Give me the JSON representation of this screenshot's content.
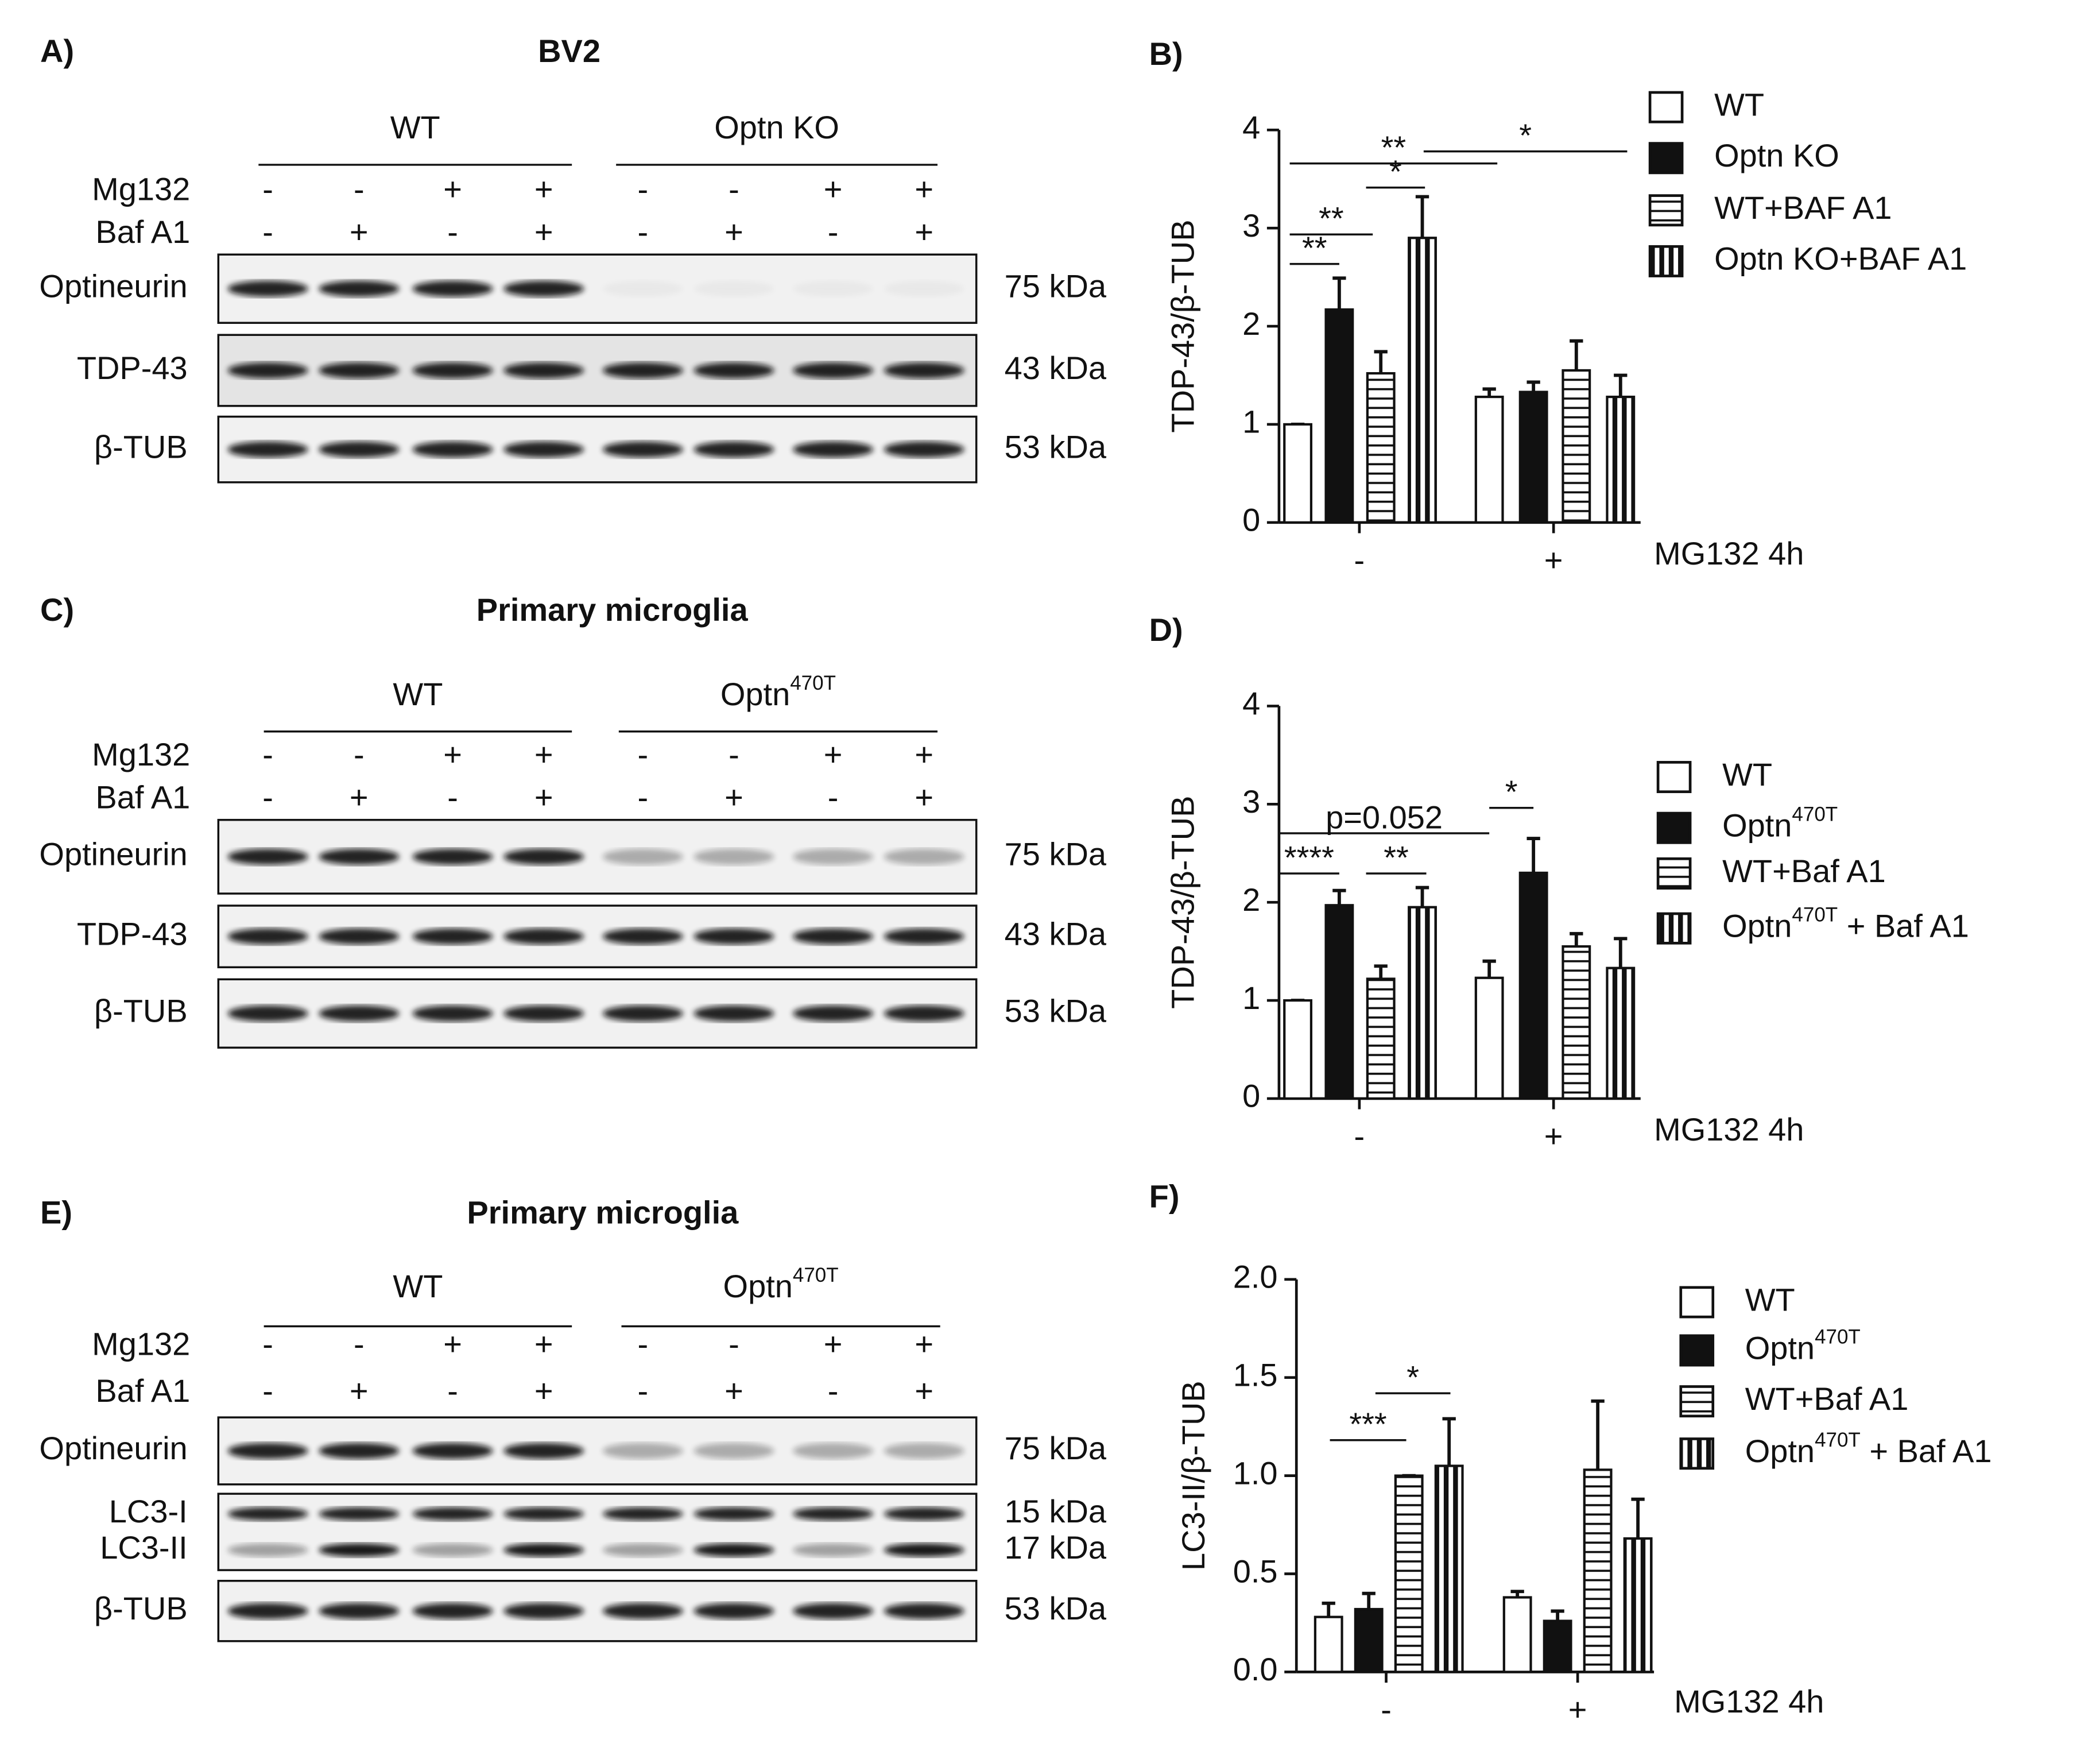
{
  "blots": [
    {
      "label": "A)",
      "title": "BV2",
      "groups": [
        "WT",
        "Optn KO"
      ],
      "treatments": [
        {
          "name": "Mg132",
          "signs": [
            "-",
            "-",
            "+",
            "+",
            "-",
            "-",
            "+",
            "+"
          ]
        },
        {
          "name": "Baf A1",
          "signs": [
            "-",
            "+",
            "-",
            "+",
            "-",
            "+",
            "-",
            "+"
          ]
        }
      ],
      "rows": [
        {
          "names": [
            "Optineurin"
          ],
          "sizes": [
            "75 kDa"
          ]
        },
        {
          "names": [
            "TDP-43"
          ],
          "sizes": [
            "43 kDa"
          ]
        },
        {
          "names": [
            "β-TUB"
          ],
          "sizes": [
            "53 kDa"
          ]
        }
      ]
    },
    {
      "label": "C)",
      "title": "Primary microglia",
      "groups": [
        "WT",
        "Optn470T"
      ],
      "treatments": [
        {
          "name": "Mg132",
          "signs": [
            "-",
            "-",
            "+",
            "+",
            "-",
            "-",
            "+",
            "+"
          ]
        },
        {
          "name": "Baf A1",
          "signs": [
            "-",
            "+",
            "-",
            "+",
            "-",
            "+",
            "-",
            "+"
          ]
        }
      ],
      "rows": [
        {
          "names": [
            "Optineurin"
          ],
          "sizes": [
            "75 kDa"
          ]
        },
        {
          "names": [
            "TDP-43"
          ],
          "sizes": [
            "43 kDa"
          ]
        },
        {
          "names": [
            "β-TUB"
          ],
          "sizes": [
            "53 kDa"
          ]
        }
      ]
    },
    {
      "label": "E)",
      "title": "Primary microglia",
      "groups": [
        "WT",
        "Optn470T"
      ],
      "treatments": [
        {
          "name": "Mg132",
          "signs": [
            "-",
            "-",
            "+",
            "+",
            "-",
            "-",
            "+",
            "+"
          ]
        },
        {
          "name": "Baf A1",
          "signs": [
            "-",
            "+",
            "-",
            "+",
            "-",
            "+",
            "-",
            "+"
          ]
        }
      ],
      "rows": [
        {
          "names": [
            "Optineurin"
          ],
          "sizes": [
            "75 kDa"
          ]
        },
        {
          "names": [
            "LC3-I",
            "LC3-II"
          ],
          "sizes": [
            "15 kDa",
            "17 kDa"
          ]
        },
        {
          "names": [
            "β-TUB"
          ],
          "sizes": [
            "53 kDa"
          ]
        }
      ]
    }
  ],
  "chart_data": [
    {
      "type": "bar",
      "label": "B)",
      "y_label": "TDP-43/β-TUB",
      "x_label": "MG132 4h",
      "categories": [
        "-",
        "+"
      ],
      "ylim": [
        0,
        4
      ],
      "yticks": [
        0,
        1,
        2,
        3,
        4
      ],
      "series": [
        {
          "name": "WT",
          "fill": "white",
          "values": [
            1.0,
            1.28
          ],
          "errors": [
            0,
            0.08
          ]
        },
        {
          "name": "Optn KO",
          "fill": "black",
          "values": [
            2.17,
            1.33
          ],
          "errors": [
            0.32,
            0.1
          ]
        },
        {
          "name": "WT+BAF A1",
          "fill": "hstripe",
          "values": [
            1.52,
            1.55
          ],
          "errors": [
            0.22,
            0.3
          ]
        },
        {
          "name": "Optn KO+BAF A1",
          "fill": "vstripe",
          "values": [
            2.9,
            1.28
          ],
          "errors": [
            0.42,
            0.22
          ]
        }
      ],
      "annotations": [
        "**",
        "*",
        "*",
        "**",
        "**"
      ]
    },
    {
      "type": "bar",
      "label": "D)",
      "y_label": "TDP-43/β-TUB",
      "x_label": "MG132 4h",
      "categories": [
        "-",
        "+"
      ],
      "ylim": [
        0,
        4
      ],
      "yticks": [
        0,
        1,
        2,
        3,
        4
      ],
      "series": [
        {
          "name": "WT",
          "fill": "white",
          "values": [
            1.0,
            1.23
          ],
          "errors": [
            0,
            0.17
          ]
        },
        {
          "name": "Optn470T",
          "fill": "black",
          "values": [
            1.97,
            2.3
          ],
          "errors": [
            0.15,
            0.35
          ]
        },
        {
          "name": "WT+Baf A1",
          "fill": "hstripe",
          "values": [
            1.22,
            1.55
          ],
          "errors": [
            0.13,
            0.13
          ]
        },
        {
          "name": "Optn470T + Baf A1",
          "fill": "vstripe",
          "values": [
            1.95,
            1.33
          ],
          "errors": [
            0.2,
            0.3
          ]
        }
      ],
      "annotations": [
        "p=0.052",
        "*",
        "****",
        "**"
      ]
    },
    {
      "type": "bar",
      "label": "F)",
      "y_label": "LC3-II/β-TUB",
      "x_label": "MG132 4h",
      "categories": [
        "-",
        "+"
      ],
      "ylim": [
        0,
        2
      ],
      "yticks": [
        {
          "value": 0,
          "label": "0.0"
        },
        0.5,
        {
          "value": 1,
          "label": "1.0"
        },
        1.5,
        {
          "value": 2,
          "label": "2.0"
        }
      ],
      "series": [
        {
          "name": "WT",
          "fill": "white",
          "values": [
            0.28,
            0.38
          ],
          "errors": [
            0.07,
            0.03
          ]
        },
        {
          "name": "Optn470T",
          "fill": "black",
          "values": [
            0.32,
            0.26
          ],
          "errors": [
            0.08,
            0.05
          ]
        },
        {
          "name": "WT+Baf A1",
          "fill": "hstripe",
          "values": [
            1.0,
            1.03
          ],
          "errors": [
            0,
            0.35
          ]
        },
        {
          "name": "Optn470T + Baf A1",
          "fill": "vstripe",
          "values": [
            1.05,
            0.68
          ],
          "errors": [
            0.24,
            0.2
          ]
        }
      ],
      "annotations": [
        "***",
        "*"
      ]
    }
  ]
}
